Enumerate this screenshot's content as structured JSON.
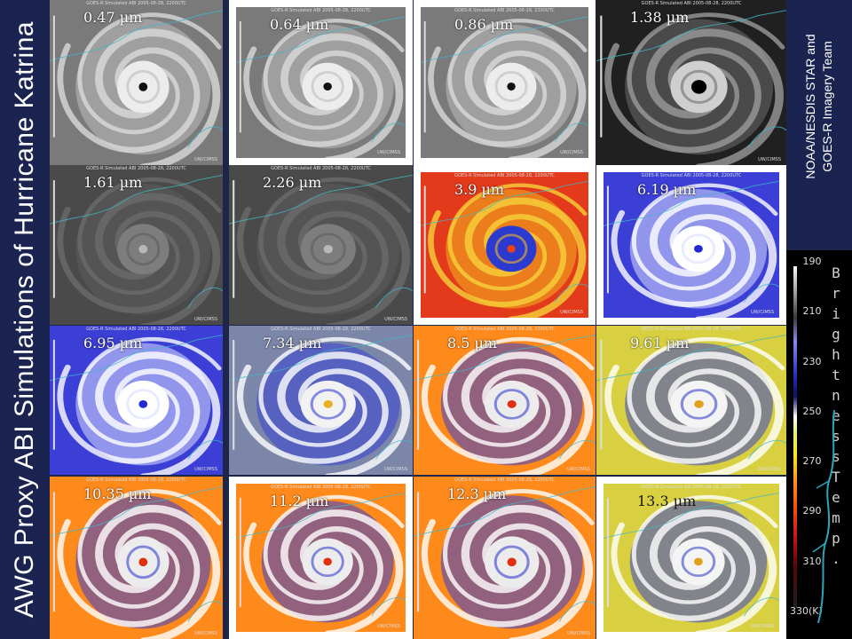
{
  "title": "AWG Proxy ABI Simulations of Hurricane Katrina",
  "credit": {
    "line1": "NOAA/NESDIS STAR and",
    "line2": "GOES-R Imagery Team"
  },
  "tile_header": "GOES-R Simulated ABI 2005-08-28, 2200UTC",
  "tile_footer": "UW/CIMSS",
  "bands": [
    {
      "label": "0.47 µm",
      "type": "visible"
    },
    {
      "label": "0.64 µm",
      "type": "visible"
    },
    {
      "label": "0.86 µm",
      "type": "visible"
    },
    {
      "label": "1.38 µm",
      "type": "dark"
    },
    {
      "label": "1.61 µm",
      "type": "nir"
    },
    {
      "label": "2.26 µm",
      "type": "nir"
    },
    {
      "label": "3.9 µm",
      "type": "red"
    },
    {
      "label": "6.19 µm",
      "type": "blue"
    },
    {
      "label": "6.95 µm",
      "type": "blue"
    },
    {
      "label": "7.34 µm",
      "type": "bluegray"
    },
    {
      "label": "8.5 µm",
      "type": "orange"
    },
    {
      "label": "9.61 µm",
      "type": "yellow"
    },
    {
      "label": "10.35 µm",
      "type": "orange"
    },
    {
      "label": "11.2 µm",
      "type": "orange"
    },
    {
      "label": "12.3 µm",
      "type": "orange"
    },
    {
      "label": "13.3 µm",
      "type": "yellow"
    }
  ],
  "colorbar": {
    "ticks": [
      "190",
      "210",
      "230",
      "250",
      "270",
      "290",
      "310",
      "330(K)"
    ],
    "title": "Brightness Temp."
  }
}
